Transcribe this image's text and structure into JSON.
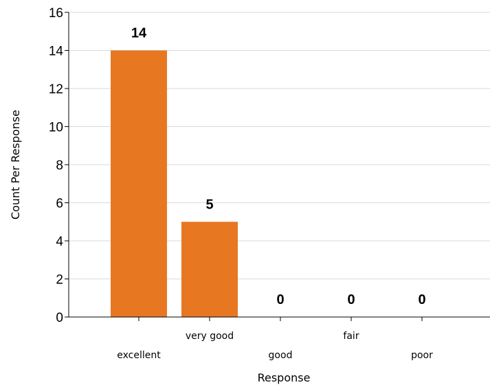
{
  "chart_data": {
    "type": "bar",
    "categories": [
      "excellent",
      "very good",
      "good",
      "fair",
      "poor"
    ],
    "values": [
      14,
      5,
      0,
      0,
      0
    ],
    "data_labels": [
      "14",
      "5",
      "0",
      "0",
      "0"
    ],
    "xlabel": "Response",
    "ylabel": "Count Per Response",
    "ylim": [
      0,
      16
    ],
    "yticks": [
      "0",
      "2",
      "4",
      "6",
      "8",
      "10",
      "12",
      "14",
      "16"
    ],
    "grid": true,
    "legend": "none",
    "colors": {
      "bar": "#E87722",
      "grid": "#d9d9d9",
      "axis": "#000000"
    }
  }
}
